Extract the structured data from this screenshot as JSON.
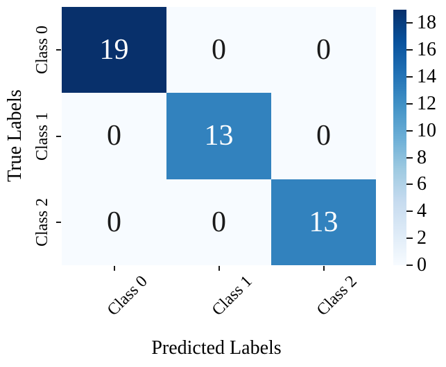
{
  "figure": {
    "background": "#ffffff"
  },
  "chart_data": {
    "type": "heatmap",
    "title": "",
    "xlabel": "Predicted Labels",
    "ylabel": "True Labels",
    "x_categories": [
      "Class 0",
      "Class 1",
      "Class 2"
    ],
    "y_categories": [
      "Class 0",
      "Class 1",
      "Class 2"
    ],
    "matrix": [
      [
        19,
        0,
        0
      ],
      [
        0,
        13,
        0
      ],
      [
        0,
        0,
        13
      ]
    ],
    "vmin": 0,
    "vmax": 19,
    "colormap": "Blues",
    "colormap_stops": [
      "#f7fbff",
      "#deebf7",
      "#c6dbef",
      "#9ecae1",
      "#6baed6",
      "#4292c6",
      "#2171b5",
      "#08519c",
      "#08306b"
    ],
    "cell_colors": {
      "value_19": "#08306b",
      "value_13": "#3282be",
      "value_0": "#f7fbff"
    },
    "annotation_color_light": "#ffffff",
    "annotation_color_dark": "#1a1a1a",
    "colorbar_ticks": [
      0,
      2,
      4,
      6,
      8,
      10,
      12,
      14,
      16,
      18
    ],
    "colorbar_position": "right",
    "x_tick_rotation_deg": 45,
    "y_tick_rotation_deg": 90,
    "grid": false,
    "legend": "none"
  }
}
